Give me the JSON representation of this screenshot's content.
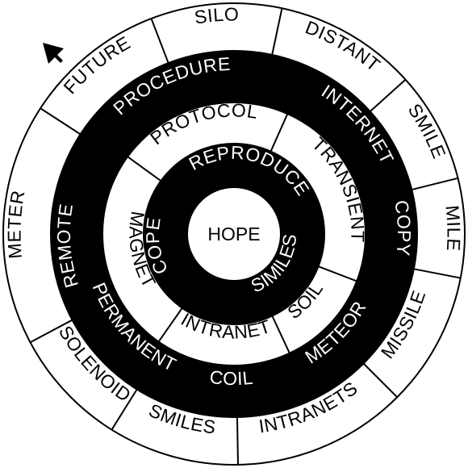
{
  "puzzle": {
    "center_word": "HOPE",
    "colors": {
      "ink": "#000000",
      "paper": "#ffffff"
    },
    "pointer_icon": "arrow-pointer",
    "rings": [
      {
        "id": "outer",
        "segments": [
          {
            "text": "FUTURE",
            "filled": false,
            "flip": false
          },
          {
            "text": "SILO",
            "filled": false,
            "flip": false
          },
          {
            "text": "DISTANT",
            "filled": false,
            "flip": false
          },
          {
            "text": "SMILE",
            "filled": false,
            "flip": false
          },
          {
            "text": "MILE",
            "filled": false,
            "flip": false
          },
          {
            "text": "MISSILE",
            "filled": false,
            "flip": true
          },
          {
            "text": "INTRANETS",
            "filled": false,
            "flip": true
          },
          {
            "text": "SMILES",
            "filled": false,
            "flip": true
          },
          {
            "text": "SOLENOID",
            "filled": false,
            "flip": true
          },
          {
            "text": "METER",
            "filled": false,
            "flip": false
          }
        ]
      },
      {
        "id": "ring-3",
        "segments": [
          {
            "text": "PROCEDURE",
            "filled": true,
            "flip": false
          },
          {
            "text": "INTERNET",
            "filled": true,
            "flip": false
          },
          {
            "text": "COPY",
            "filled": true,
            "flip": false
          },
          {
            "text": "METEOR",
            "filled": true,
            "flip": true
          },
          {
            "text": "COIL",
            "filled": true,
            "flip": true
          },
          {
            "text": "PERMANENT",
            "filled": true,
            "flip": true
          },
          {
            "text": "REMOTE",
            "filled": true,
            "flip": false
          }
        ]
      },
      {
        "id": "ring-2",
        "segments": [
          {
            "text": "PROTOCOL",
            "filled": false,
            "flip": false
          },
          {
            "text": "TRANSIENT",
            "filled": false,
            "flip": false
          },
          {
            "text": "SOIL",
            "filled": false,
            "flip": true
          },
          {
            "text": "INTRANET",
            "filled": false,
            "flip": true
          },
          {
            "text": "MAGNET",
            "filled": false,
            "flip": true
          }
        ]
      },
      {
        "id": "inner",
        "segments": [
          {
            "text": "REPRODUCE",
            "filled": true,
            "flip": false
          },
          {
            "text": "SIMILES",
            "filled": true,
            "flip": true
          },
          {
            "text": "COPE",
            "filled": true,
            "flip": false
          }
        ]
      }
    ]
  }
}
